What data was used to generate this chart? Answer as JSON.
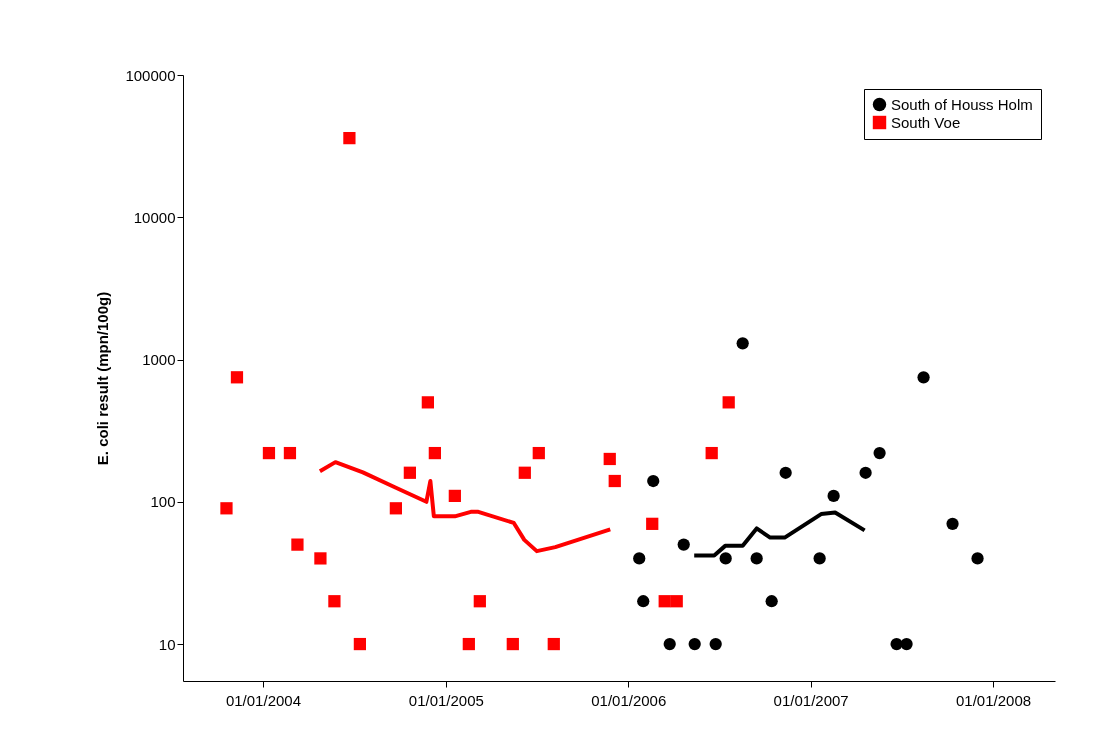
{
  "chart_data": {
    "type": "scatter",
    "ylabel": "E. coli result (mpn/100g)",
    "log": true,
    "grid": false,
    "legend": "top right",
    "xlim": [
      "2003-07-25",
      "2008-05-04"
    ],
    "xticks": [
      {
        "value": "2004-01-01",
        "label": "01/01/2004"
      },
      {
        "value": "2005-01-01",
        "label": "01/01/2005"
      },
      {
        "value": "2006-01-01",
        "label": "01/01/2006"
      },
      {
        "value": "2007-01-01",
        "label": "01/01/2007"
      },
      {
        "value": "2008-01-01",
        "label": "01/01/2008"
      }
    ],
    "ylim": [
      5.5,
      100000
    ],
    "yticks": [
      10,
      100,
      1000,
      10000,
      100000
    ],
    "series": [
      {
        "name": "South of Houss Holm",
        "marker": "circle",
        "color": "#000000",
        "x": [
          "2006-01-23",
          "2006-01-31",
          "2006-02-20",
          "2006-03-25",
          "2006-04-22",
          "2006-05-14",
          "2006-06-25",
          "2006-07-15",
          "2006-08-18",
          "2006-09-15",
          "2006-10-15",
          "2006-11-12",
          "2007-01-19",
          "2007-02-16",
          "2007-04-21",
          "2007-05-19",
          "2007-06-22",
          "2007-07-12",
          "2007-08-15",
          "2007-10-12",
          "2007-12-01"
        ],
        "values": [
          40,
          20,
          140,
          10,
          50,
          10,
          10,
          40,
          1300,
          40,
          20,
          160,
          40,
          110,
          160,
          220,
          10,
          10,
          750,
          70,
          40
        ]
      },
      {
        "name": "South Voe",
        "marker": "square",
        "color": "#ff0000",
        "x": [
          "2003-10-20",
          "2003-11-10",
          "2004-01-13",
          "2004-02-24",
          "2004-03-10",
          "2004-04-25",
          "2004-05-23",
          "2004-06-22",
          "2004-07-13",
          "2004-09-23",
          "2004-10-21",
          "2004-11-26",
          "2004-12-10",
          "2005-01-19",
          "2005-02-16",
          "2005-03-10",
          "2005-05-15",
          "2005-06-08",
          "2005-07-06",
          "2005-08-05",
          "2005-11-25",
          "2005-12-05",
          "2006-02-18",
          "2006-03-15",
          "2006-04-08",
          "2006-06-17",
          "2006-07-21"
        ],
        "values": [
          90,
          750,
          220,
          220,
          50,
          40,
          20,
          36000,
          10,
          90,
          160,
          500,
          220,
          110,
          10,
          20,
          10,
          160,
          220,
          10,
          200,
          140,
          70,
          20,
          20,
          220,
          500
        ]
      },
      {
        "type": "line",
        "line_style": "solid",
        "color": "#000000",
        "x": [
          "2006-05-13",
          "2006-06-22",
          "2006-07-14",
          "2006-08-18",
          "2006-09-15",
          "2006-10-12",
          "2006-11-10",
          "2007-01-22",
          "2007-02-19",
          "2007-04-19"
        ],
        "values": [
          42,
          42,
          49,
          49,
          65,
          56,
          56,
          82,
          84,
          63
        ]
      },
      {
        "type": "line",
        "line_style": "solid",
        "color": "#ff0000",
        "x": [
          "2004-04-24",
          "2004-05-25",
          "2004-07-19",
          "2004-09-22",
          "2004-11-23",
          "2004-12-01",
          "2004-12-08",
          "2005-01-19",
          "2005-02-20",
          "2005-03-07",
          "2005-05-17",
          "2005-06-07",
          "2005-07-02",
          "2005-08-08",
          "2005-11-26"
        ],
        "values": [
          164,
          190,
          161,
          126,
          100,
          140,
          79,
          79,
          85,
          85,
          71,
          54,
          45,
          48,
          64
        ]
      }
    ]
  }
}
